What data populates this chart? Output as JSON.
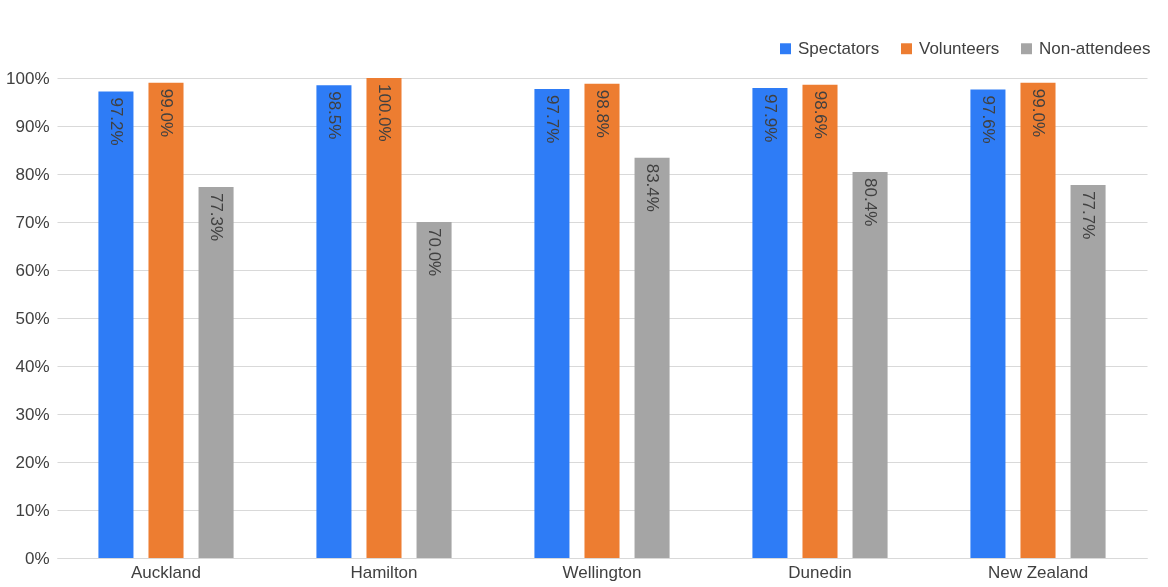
{
  "chart_data": {
    "type": "bar",
    "categories": [
      "Auckland",
      "Hamilton",
      "Wellington",
      "Dunedin",
      "New Zealand"
    ],
    "series": [
      {
        "name": "Spectators",
        "color": "#2e7cf6",
        "values": [
          97.2,
          98.5,
          97.7,
          97.9,
          97.6
        ],
        "value_labels": [
          "97.2%",
          "98.5%",
          "97.7%",
          "97.9%",
          "97.6%"
        ]
      },
      {
        "name": "Volunteers",
        "color": "#ed7d31",
        "values": [
          99.0,
          100.0,
          98.8,
          98.6,
          99.0
        ],
        "value_labels": [
          "99.0%",
          "100.0%",
          "98.8%",
          "98.6%",
          "99.0%"
        ]
      },
      {
        "name": "Non-attendees",
        "color": "#a5a5a5",
        "values": [
          77.3,
          70.0,
          83.4,
          80.4,
          77.7
        ],
        "value_labels": [
          "77.3%",
          "70.0%",
          "83.4%",
          "80.4%",
          "77.7%"
        ]
      }
    ],
    "ylim": [
      0,
      100
    ],
    "yticks": [
      {
        "value": 0,
        "label": "0%"
      },
      {
        "value": 10,
        "label": "10%"
      },
      {
        "value": 20,
        "label": "20%"
      },
      {
        "value": 30,
        "label": "30%"
      },
      {
        "value": 40,
        "label": "40%"
      },
      {
        "value": 50,
        "label": "50%"
      },
      {
        "value": 60,
        "label": "60%"
      },
      {
        "value": 70,
        "label": "70%"
      },
      {
        "value": 80,
        "label": "80%"
      },
      {
        "value": 90,
        "label": "90%"
      },
      {
        "value": 100,
        "label": "100%"
      }
    ],
    "grid": "y",
    "legend": "top right"
  }
}
